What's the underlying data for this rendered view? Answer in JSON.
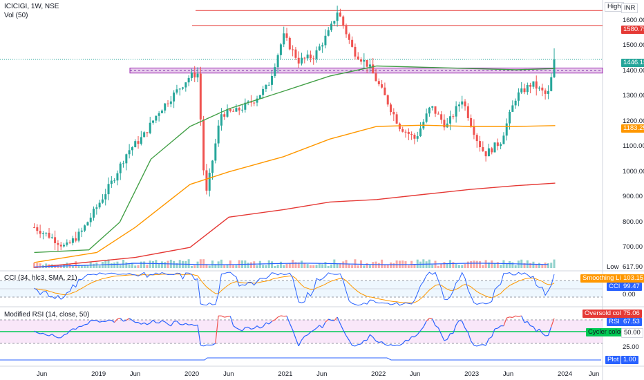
{
  "header": {
    "symbol_label": "ICICIGI, 1W, NSE",
    "volume_label": "Vol (50)",
    "currency": "INR",
    "high_label": "High",
    "low_label": "Low",
    "low_value": "617.90"
  },
  "price_axis": {
    "ticks": [
      "1600.00",
      "1500.00",
      "1400.00",
      "1300.00",
      "1200.00",
      "1100.00",
      "1000.00",
      "900.00",
      "800.00",
      "700.00"
    ],
    "badges": {
      "resistance": "1580.75",
      "last": "1446.15",
      "ema": "1183.25"
    }
  },
  "time_axis": {
    "labels": [
      "Jun",
      "2019",
      "Jun",
      "2020",
      "Jun",
      "2021",
      "Jun",
      "2022",
      "Jun",
      "2023",
      "Jun",
      "2024",
      "Jun"
    ]
  },
  "cci_panel": {
    "title": "CCI (34, hlc3, SMA, 21)",
    "smoothing_label": "Smoothing Line",
    "smoothing_value": "103.15",
    "cci_label": "CCI",
    "cci_value": "99.47",
    "zero_label": "0.00"
  },
  "rsi_panel": {
    "title": "Modified RSI (14, close, 50)",
    "oversold_label": "Oversold color",
    "oversold_value": "75.06",
    "rsi_label": "RSI",
    "rsi_value": "67.53",
    "cycler_label": "Cycler colors",
    "cycler_value": "50.00",
    "level_label": "25.00",
    "plot_label": "Plot",
    "plot_value": "1.00"
  },
  "colors": {
    "up": "#26a69a",
    "down": "#ef5350",
    "ma_green": "#43a047",
    "ma_orange": "#ff9800",
    "ma_red": "#e53935",
    "cci_blue": "#2962ff",
    "zone_purple": "#ce93d8",
    "rsi_bg": "#f8e1f8"
  },
  "chart_data": [
    {
      "type": "candlestick",
      "title": "ICICIGI, 1W, NSE",
      "ylim": [
        617.9,
        1660
      ],
      "x_labels": [
        "Jun",
        "2019",
        "Jun",
        "2020",
        "Jun",
        "2021",
        "Jun",
        "2022",
        "Jun",
        "2023",
        "Jun",
        "2024",
        "Jun"
      ],
      "close_path": [
        [
          "2018-05",
          780
        ],
        [
          "2018-07",
          745
        ],
        [
          "2018-09",
          700
        ],
        [
          "2018-11",
          760
        ],
        [
          "2019-01",
          860
        ],
        [
          "2019-03",
          960
        ],
        [
          "2019-05",
          1080
        ],
        [
          "2019-07",
          1140
        ],
        [
          "2019-09",
          1240
        ],
        [
          "2019-11",
          1310
        ],
        [
          "2020-01",
          1380
        ],
        [
          "2020-02",
          1390
        ],
        [
          "2020-03",
          890
        ],
        [
          "2020-05",
          1230
        ],
        [
          "2020-07",
          1240
        ],
        [
          "2020-09",
          1280
        ],
        [
          "2020-11",
          1340
        ],
        [
          "2021-01",
          1540
        ],
        [
          "2021-03",
          1440
        ],
        [
          "2021-05",
          1460
        ],
        [
          "2021-07",
          1560
        ],
        [
          "2021-08",
          1640
        ],
        [
          "2021-10",
          1480
        ],
        [
          "2021-12",
          1420
        ],
        [
          "2022-02",
          1300
        ],
        [
          "2022-04",
          1180
        ],
        [
          "2022-06",
          1130
        ],
        [
          "2022-08",
          1260
        ],
        [
          "2022-10",
          1180
        ],
        [
          "2022-12",
          1290
        ],
        [
          "2023-02",
          1120
        ],
        [
          "2023-03",
          1070
        ],
        [
          "2023-05",
          1120
        ],
        [
          "2023-07",
          1300
        ],
        [
          "2023-09",
          1350
        ],
        [
          "2023-11",
          1300
        ],
        [
          "2023-12",
          1446.15
        ]
      ],
      "horizontal_levels": [
        1640,
        1580.75
      ],
      "zone": [
        1392,
        1412
      ],
      "last": 1446.15,
      "moving_averages": [
        {
          "color": "green",
          "points": [
            [
              "2018-05",
              680
            ],
            [
              "2018-12",
              690
            ],
            [
              "2019-04",
              800
            ],
            [
              "2019-08",
              1050
            ],
            [
              "2020-01",
              1180
            ],
            [
              "2020-06",
              1250
            ],
            [
              "2021-01",
              1320
            ],
            [
              "2021-07",
              1380
            ],
            [
              "2022-01",
              1420
            ],
            [
              "2022-07",
              1415
            ],
            [
              "2023-01",
              1410
            ],
            [
              "2023-07",
              1405
            ],
            [
              "2023-12",
              1410
            ]
          ]
        },
        {
          "color": "orange",
          "points": [
            [
              "2018-05",
              640
            ],
            [
              "2019-01",
              680
            ],
            [
              "2019-06",
              780
            ],
            [
              "2020-01",
              950
            ],
            [
              "2020-06",
              1000
            ],
            [
              "2021-01",
              1060
            ],
            [
              "2021-07",
              1130
            ],
            [
              "2022-01",
              1180
            ],
            [
              "2022-07",
              1185
            ],
            [
              "2023-01",
              1180
            ],
            [
              "2023-07",
              1180
            ],
            [
              "2023-12",
              1183.25
            ]
          ]
        },
        {
          "color": "red",
          "points": [
            [
              "2018-05",
              620
            ],
            [
              "2019-06",
              660
            ],
            [
              "2020-01",
              700
            ],
            [
              "2020-06",
              820
            ],
            [
              "2021-01",
              850
            ],
            [
              "2021-07",
              880
            ],
            [
              "2022-01",
              890
            ],
            [
              "2022-07",
              910
            ],
            [
              "2023-01",
              930
            ],
            [
              "2023-07",
              945
            ],
            [
              "2023-12",
              955
            ]
          ]
        }
      ]
    },
    {
      "type": "line",
      "title": "CCI (34, hlc3, SMA, 21)",
      "series": [
        {
          "name": "CCI",
          "last": 99.47
        },
        {
          "name": "Smoothing Line",
          "last": 103.15
        }
      ]
    },
    {
      "type": "line",
      "title": "Modified RSI (14, close, 50)",
      "series": [
        {
          "name": "RSI",
          "last": 67.53
        }
      ],
      "levels": [
        75.06,
        50.0,
        25.0
      ]
    }
  ]
}
